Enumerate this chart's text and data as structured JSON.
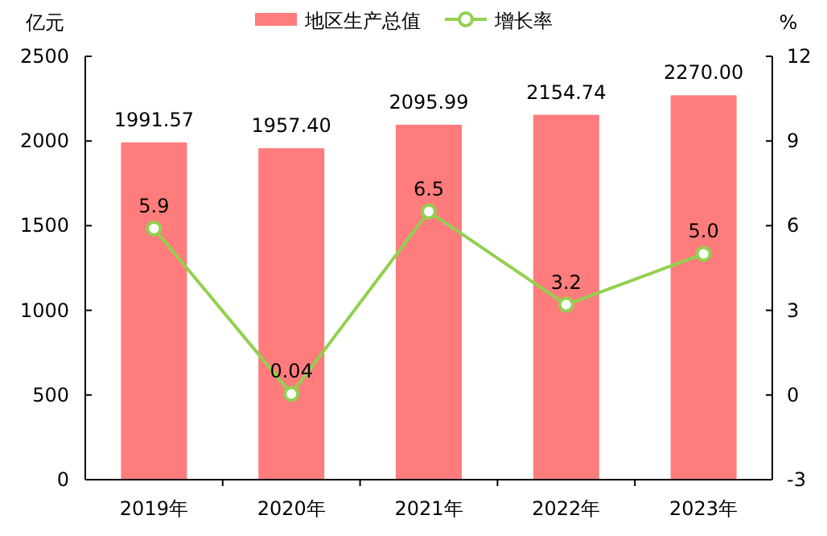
{
  "chart_data": {
    "type": "bar",
    "categories": [
      "2019年",
      "2020年",
      "2021年",
      "2022年",
      "2023年"
    ],
    "series": [
      {
        "name": "地区生产总值",
        "color": "#ff7c7c",
        "values": [
          1991.57,
          1957.4,
          2095.99,
          2154.74,
          2270.0
        ],
        "value_labels": [
          "1991.57",
          "1957.40",
          "2095.99",
          "2154.74",
          "2270.00"
        ]
      },
      {
        "name": "增长率",
        "type": "line",
        "axis": "y2",
        "color": "#92d050",
        "values": [
          5.9,
          0.04,
          6.5,
          3.2,
          5.0
        ],
        "value_labels": [
          "5.9",
          "0.04",
          "6.5",
          "3.2",
          "5.0"
        ]
      }
    ],
    "ylabel": "亿元",
    "y2label": "%",
    "ylim": [
      0,
      2500
    ],
    "yticks": [
      0,
      500,
      1000,
      1500,
      2000,
      2500
    ],
    "y2lim": [
      -3,
      12
    ],
    "y2ticks": [
      -3,
      0,
      3,
      6,
      9,
      12
    ],
    "legend": "top",
    "grid": false,
    "marker": "circle",
    "line_style": "solid"
  }
}
